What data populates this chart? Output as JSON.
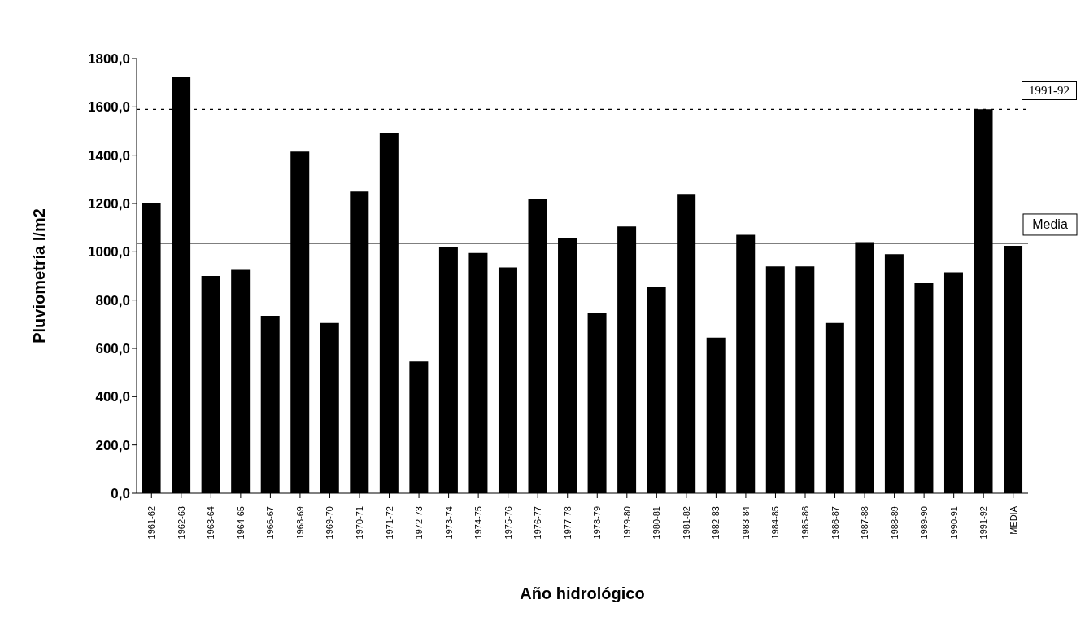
{
  "chart_data": {
    "type": "bar",
    "xlabel": "Año hidrológico",
    "ylabel": "Pluviometría  l/m2",
    "categories": [
      "1961-62",
      "1962-63",
      "1963-64",
      "1964-65",
      "1966-67",
      "1968-69",
      "1969-70",
      "1970-71",
      "1971-72",
      "1972-73",
      "1973-74",
      "1974-75",
      "1975-76",
      "1976-77",
      "1977-78",
      "1978-79",
      "1979-80",
      "1980-81",
      "1981-82",
      "1982-83",
      "1983-84",
      "1984-85",
      "1985-86",
      "1986-87",
      "1987-88",
      "1988-89",
      "1989-90",
      "1990-91",
      "1991-92",
      "MEDIA"
    ],
    "values": [
      1200,
      1725,
      900,
      925,
      735,
      1415,
      705,
      1250,
      1490,
      545,
      1020,
      995,
      935,
      1220,
      1055,
      745,
      1105,
      855,
      1240,
      645,
      1070,
      940,
      940,
      705,
      1040,
      990,
      870,
      915,
      1590,
      1025
    ],
    "color": "#000000",
    "ylim": [
      0,
      1800
    ],
    "yticks": [
      {
        "value": 0,
        "label": "0,0"
      },
      {
        "value": 200,
        "label": "200,0"
      },
      {
        "value": 400,
        "label": "400,0"
      },
      {
        "value": 600,
        "label": "600,0"
      },
      {
        "value": 800,
        "label": "800,0"
      },
      {
        "value": 1000,
        "label": "1000,0"
      },
      {
        "value": 1200,
        "label": "1200,0"
      },
      {
        "value": 1400,
        "label": "1400,0"
      },
      {
        "value": 1600,
        "label": "1600,0"
      },
      {
        "value": 1800,
        "label": "1800,0"
      }
    ],
    "grid": false,
    "legend": false,
    "annotations": [
      "1991-92"
    ],
    "ref_lines": [
      {
        "axis": "y",
        "value": 1590,
        "line_style": "dashed",
        "color": "#000000"
      },
      {
        "axis": "y",
        "value": 1035,
        "label": "Media",
        "line_style": "solid",
        "color": "#000000"
      }
    ]
  }
}
